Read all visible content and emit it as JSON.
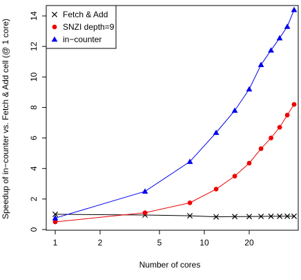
{
  "chart_data": {
    "type": "line",
    "xlabel": "Number of cores",
    "ylabel": "Speedup of in−counter vs. Fetch & Add cell (@ 1 core)",
    "x_scale": "log",
    "xlim": [
      1,
      40
    ],
    "ylim": [
      0,
      14.5
    ],
    "x_ticks": [
      1,
      2,
      5,
      10,
      20
    ],
    "x_tick_labels": [
      "1",
      "2",
      "5",
      "10",
      "20"
    ],
    "y_ticks": [
      0,
      2,
      4,
      6,
      8,
      10,
      12,
      14
    ],
    "y_tick_labels": [
      "0",
      "2",
      "4",
      "6",
      "8",
      "10",
      "12",
      "14"
    ],
    "grid": false,
    "legend_position": "top-left",
    "series": [
      {
        "name": "Fetch & Add",
        "color": "#000000",
        "marker": "x",
        "x": [
          1,
          4,
          8,
          12,
          16,
          20,
          24,
          28,
          32,
          36,
          40
        ],
        "y": [
          1.0,
          0.95,
          0.9,
          0.83,
          0.85,
          0.85,
          0.86,
          0.87,
          0.87,
          0.87,
          0.87
        ]
      },
      {
        "name": "SNZI depth=9",
        "color": "#ee0000",
        "marker": "circle",
        "x": [
          1,
          4,
          8,
          12,
          16,
          20,
          24,
          28,
          32,
          36,
          40
        ],
        "y": [
          0.5,
          1.1,
          1.75,
          2.65,
          3.5,
          4.35,
          5.3,
          6.0,
          6.7,
          7.5,
          8.2
        ]
      },
      {
        "name": "in−counter",
        "color": "#0000ee",
        "marker": "triangle",
        "x": [
          1,
          4,
          8,
          12,
          16,
          20,
          24,
          28,
          32,
          36,
          40
        ],
        "y": [
          0.75,
          2.5,
          4.45,
          6.35,
          7.8,
          9.2,
          10.8,
          11.75,
          12.55,
          13.3,
          14.4
        ]
      }
    ]
  }
}
